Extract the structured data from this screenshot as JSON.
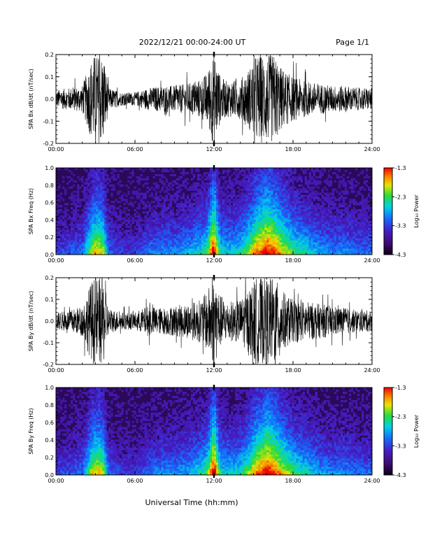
{
  "header": {
    "title": "2022/12/21  00:00-24:00 UT",
    "page": "Page 1/1"
  },
  "x_axis_title": "Universal Time (hh:mm)",
  "colorbar": {
    "label": "Log₁₀ Power",
    "ticks": [
      "-1.3",
      "-2.3",
      "-3.3",
      "-4.3"
    ]
  },
  "colors": {
    "trace": "#000000",
    "spectrogram_bg": "#2a0a58"
  },
  "chart_data": [
    {
      "type": "line",
      "ylabel": "SPA Bx dB/dt (nT/sec)",
      "x_ticks": [
        "00:00",
        "06:00",
        "12:00",
        "18:00",
        "24:00"
      ],
      "y_ticks": [
        "0.2",
        "0.1",
        "0.0",
        "-0.1",
        "-0.2"
      ],
      "xlim": [
        0,
        24
      ],
      "ylim": [
        -0.2,
        0.2
      ],
      "envelope": {
        "x": [
          0,
          1,
          2,
          2.8,
          3.2,
          3.6,
          4,
          5,
          6,
          7,
          8,
          9,
          10,
          11,
          11.5,
          11.9,
          12.1,
          12.5,
          13,
          14,
          14.8,
          15.2,
          15.6,
          16,
          16.3,
          16.6,
          17,
          17.5,
          18,
          19,
          20,
          21,
          22,
          23,
          24
        ],
        "amplitude": [
          0.04,
          0.05,
          0.06,
          0.2,
          0.2,
          0.2,
          0.05,
          0.03,
          0.03,
          0.05,
          0.06,
          0.06,
          0.07,
          0.09,
          0.12,
          0.2,
          0.2,
          0.1,
          0.08,
          0.09,
          0.15,
          0.2,
          0.2,
          0.2,
          0.2,
          0.2,
          0.15,
          0.12,
          0.1,
          0.08,
          0.07,
          0.06,
          0.06,
          0.05,
          0.05
        ]
      }
    },
    {
      "type": "heatmap",
      "ylabel": "SPA Bx Freq (Hz)",
      "x_ticks": [
        "00:00",
        "06:00",
        "12:00",
        "18:00",
        "24:00"
      ],
      "y_ticks": [
        "1.0",
        "0.8",
        "0.6",
        "0.4",
        "0.2",
        "0.0"
      ],
      "xlim": [
        0,
        24
      ],
      "ylim": [
        0,
        1.0
      ],
      "zlim": [
        -4.3,
        -1.3
      ],
      "activity": {
        "x": [
          0,
          1,
          2,
          2.8,
          3.2,
          3.6,
          4,
          5,
          6,
          7,
          8,
          9,
          10,
          11,
          11.5,
          11.9,
          12.1,
          12.5,
          13,
          14,
          14.8,
          15.2,
          15.6,
          16,
          16.3,
          16.6,
          17,
          17.5,
          18,
          19,
          20,
          21,
          22,
          23,
          24
        ],
        "level": [
          0.2,
          0.25,
          0.3,
          0.75,
          0.8,
          0.7,
          0.3,
          0.2,
          0.2,
          0.3,
          0.35,
          0.35,
          0.4,
          0.5,
          0.6,
          0.95,
          0.95,
          0.5,
          0.45,
          0.5,
          0.7,
          0.85,
          0.9,
          1.0,
          0.95,
          0.9,
          0.8,
          0.7,
          0.6,
          0.5,
          0.4,
          0.35,
          0.35,
          0.3,
          0.3
        ]
      }
    },
    {
      "type": "line",
      "ylabel": "SPA By dB/dt (nT/sec)",
      "x_ticks": [
        "00:00",
        "06:00",
        "12:00",
        "18:00",
        "24:00"
      ],
      "y_ticks": [
        "0.2",
        "0.1",
        "0.0",
        "-0.1",
        "-0.2"
      ],
      "xlim": [
        0,
        24
      ],
      "ylim": [
        -0.2,
        0.2
      ],
      "envelope": {
        "x": [
          0,
          1,
          2,
          2.8,
          3.2,
          3.6,
          4,
          5,
          6,
          7,
          8,
          9,
          10,
          11,
          11.5,
          11.9,
          12.1,
          12.5,
          13,
          14,
          14.8,
          15.2,
          15.6,
          16,
          16.3,
          16.6,
          17,
          17.5,
          18,
          19,
          20,
          21,
          22,
          23,
          24
        ],
        "amplitude": [
          0.04,
          0.05,
          0.07,
          0.2,
          0.2,
          0.2,
          0.06,
          0.04,
          0.04,
          0.07,
          0.06,
          0.07,
          0.08,
          0.1,
          0.14,
          0.2,
          0.2,
          0.12,
          0.09,
          0.1,
          0.16,
          0.2,
          0.2,
          0.2,
          0.2,
          0.2,
          0.16,
          0.12,
          0.1,
          0.09,
          0.08,
          0.07,
          0.06,
          0.05,
          0.05
        ]
      }
    },
    {
      "type": "heatmap",
      "ylabel": "SPA By Freq (Hz)",
      "x_ticks": [
        "00:00",
        "06:00",
        "12:00",
        "18:00",
        "24:00"
      ],
      "y_ticks": [
        "1.0",
        "0.8",
        "0.6",
        "0.4",
        "0.2",
        "0.0"
      ],
      "xlim": [
        0,
        24
      ],
      "ylim": [
        0,
        1.0
      ],
      "zlim": [
        -4.3,
        -1.3
      ],
      "activity": {
        "x": [
          0,
          1,
          2,
          2.8,
          3.2,
          3.6,
          4,
          5,
          6,
          7,
          8,
          9,
          10,
          11,
          11.5,
          11.9,
          12.1,
          12.5,
          13,
          14,
          14.8,
          15.2,
          15.6,
          16,
          16.3,
          16.6,
          17,
          17.5,
          18,
          19,
          20,
          21,
          22,
          23,
          24
        ],
        "level": [
          0.2,
          0.25,
          0.3,
          0.75,
          0.8,
          0.7,
          0.3,
          0.2,
          0.2,
          0.3,
          0.35,
          0.35,
          0.4,
          0.5,
          0.6,
          0.95,
          0.95,
          0.5,
          0.45,
          0.5,
          0.7,
          0.85,
          0.9,
          1.0,
          0.95,
          0.9,
          0.8,
          0.7,
          0.6,
          0.5,
          0.4,
          0.35,
          0.35,
          0.3,
          0.3
        ]
      }
    }
  ]
}
